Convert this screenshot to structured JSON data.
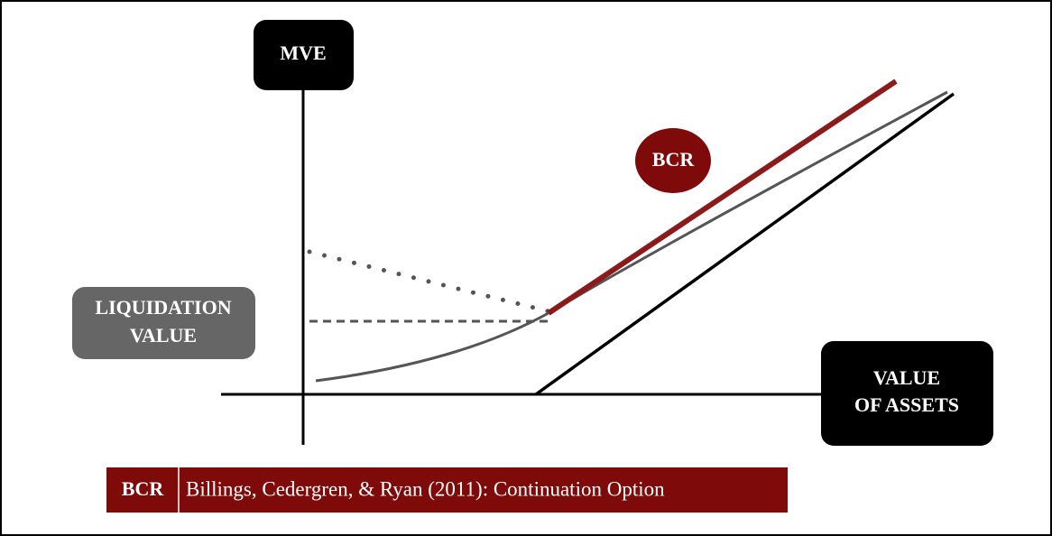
{
  "axes": {
    "y_label": "MVE",
    "x_label_lines": [
      "VALUE",
      "OF ASSETS"
    ]
  },
  "annotations": {
    "bcr_badge": "BCR",
    "liquidation_lines": [
      "LIQUIDATION",
      "VALUE"
    ]
  },
  "legend": {
    "key": "BCR",
    "description": "Billings, Cedergren, & Ryan (2011): Continuation Option"
  }
}
